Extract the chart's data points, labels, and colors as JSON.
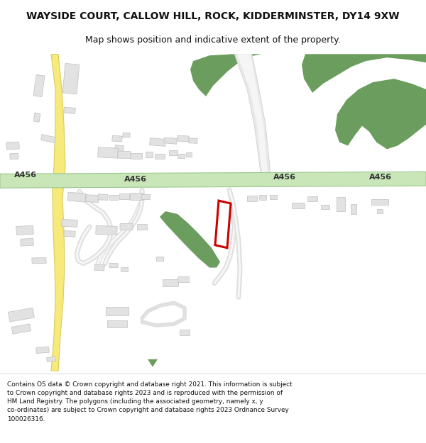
{
  "title_line1": "WAYSIDE COURT, CALLOW HILL, ROCK, KIDDERMINSTER, DY14 9XW",
  "title_line2": "Map shows position and indicative extent of the property.",
  "footer_text": "Contains OS data © Crown copyright and database right 2021. This information is subject\nto Crown copyright and database rights 2023 and is reproduced with the permission of\nHM Land Registry. The polygons (including the associated geometry, namely x, y\nco-ordinates) are subject to Crown copyright and database rights 2023 Ordnance Survey\n100026316.",
  "bg_color": "#ffffff",
  "map_bg": "#f8f8f8",
  "road_green_color": "#c8e6b8",
  "road_green_border": "#9dc890",
  "building_color": "#e2e2e2",
  "building_border": "#c0c0c0",
  "green_area_color": "#6b9e5e",
  "road_label_color": "#333333",
  "red_outline_color": "#cc0000",
  "yellow_road_color": "#f7e97a",
  "yellow_road_border": "#d8cc60",
  "gray_road_color": "#e0e0e0",
  "gray_road_border": "#cccccc",
  "title_fontsize": 10,
  "subtitle_fontsize": 9,
  "footer_fontsize": 6.4,
  "road_label_fontsize": 8,
  "road_label_fontweight": "bold"
}
